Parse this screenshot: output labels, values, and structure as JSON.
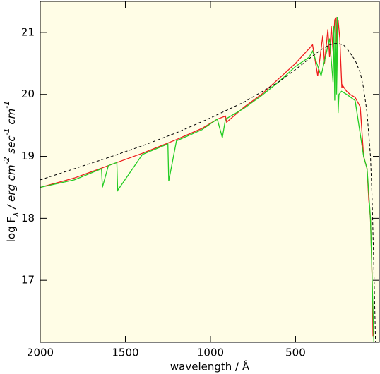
{
  "chart_data": {
    "type": "line",
    "x_label": "wavelength / Å",
    "y_label": [
      {
        "text": "log F",
        "shift": "base"
      },
      {
        "text": "λ",
        "shift": "sub"
      },
      {
        "text": " / erg cm",
        "shift": "base"
      },
      {
        "text": "-2",
        "shift": "super"
      },
      {
        "text": " sec",
        "shift": "base"
      },
      {
        "text": "-1",
        "shift": "super"
      },
      {
        "text": " cm",
        "shift": "base"
      },
      {
        "text": "-1",
        "shift": "super"
      }
    ],
    "background": "#fffde6",
    "xlim": [
      2000,
      8
    ],
    "xticks": [
      2000,
      1500,
      1000,
      500
    ],
    "ylim": [
      16,
      21.5
    ],
    "yticks": [
      17,
      18,
      19,
      20,
      21
    ],
    "series": [
      {
        "color": "#ee1c1c",
        "style": "solid",
        "x": [
          2000,
          1800,
          1600,
          1400,
          1200,
          1050,
          960,
          912,
          905,
          800,
          700,
          600,
          500,
          450,
          400,
          370,
          340,
          330,
          310,
          300,
          290,
          280,
          270,
          262,
          258,
          250,
          240,
          228,
          225,
          200,
          180,
          150,
          120,
          100,
          90,
          80,
          70,
          60,
          50,
          45
        ],
        "values": [
          18.5,
          18.65,
          18.85,
          19.05,
          19.27,
          19.45,
          19.6,
          19.65,
          19.55,
          19.8,
          20.0,
          20.25,
          20.5,
          20.65,
          20.8,
          20.3,
          20.95,
          20.5,
          21.05,
          20.6,
          21.1,
          20.7,
          21.2,
          21.25,
          20.8,
          21.2,
          20.9,
          20.1,
          20.15,
          20.05,
          20.0,
          19.95,
          19.8,
          19.0,
          18.9,
          18.8,
          18.3,
          18.0,
          17.0,
          16.1
        ]
      },
      {
        "color": "#22cc22",
        "style": "solid",
        "x": [
          2000,
          1800,
          1640,
          1635,
          1600,
          1550,
          1545,
          1400,
          1250,
          1245,
          1200,
          1050,
          960,
          930,
          912,
          800,
          700,
          600,
          500,
          420,
          400,
          350,
          300,
          280,
          275,
          270,
          265,
          260,
          255,
          250,
          245,
          230,
          200,
          150,
          100,
          80,
          60,
          50,
          40
        ],
        "values": [
          18.5,
          18.62,
          18.8,
          18.5,
          18.85,
          18.9,
          18.45,
          19.03,
          19.2,
          18.6,
          19.25,
          19.43,
          19.6,
          19.3,
          19.6,
          19.78,
          19.98,
          20.2,
          20.45,
          20.6,
          20.7,
          20.3,
          20.9,
          20.2,
          21.1,
          19.9,
          21.2,
          20.0,
          21.25,
          19.7,
          20.0,
          20.05,
          20.0,
          19.9,
          19.0,
          18.8,
          18.0,
          17.0,
          16.0
        ]
      },
      {
        "color": "#000000",
        "style": "dashed",
        "x": [
          2000,
          1800,
          1600,
          1400,
          1200,
          1000,
          800,
          600,
          500,
          400,
          350,
          300,
          270,
          250,
          220,
          200,
          150,
          120,
          100,
          80,
          60,
          50,
          40,
          30
        ],
        "values": [
          18.62,
          18.8,
          18.98,
          19.17,
          19.38,
          19.62,
          19.88,
          20.2,
          20.4,
          20.62,
          20.72,
          20.8,
          20.82,
          20.82,
          20.8,
          20.75,
          20.55,
          20.35,
          20.1,
          19.7,
          19.0,
          18.3,
          17.2,
          16.0
        ]
      }
    ]
  }
}
